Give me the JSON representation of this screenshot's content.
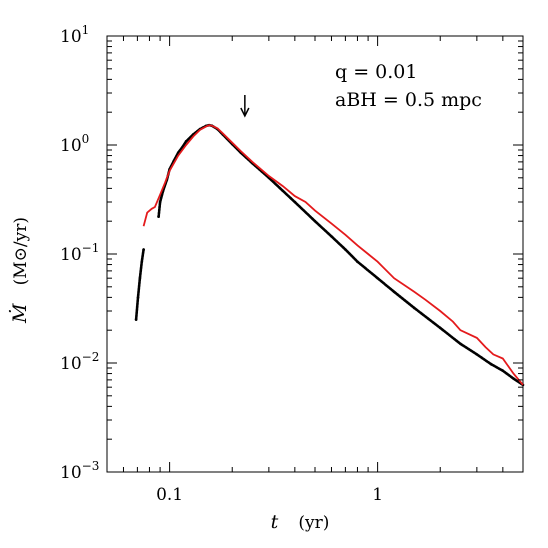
{
  "chart_data": {
    "type": "line",
    "x_scale": "log",
    "y_scale": "log",
    "xlim": [
      0.05,
      5
    ],
    "ylim": [
      0.001,
      10
    ],
    "x_ticks": [
      {
        "value": 0.1,
        "label": "0.1"
      },
      {
        "value": 1,
        "label": "1"
      }
    ],
    "y_ticks": [
      {
        "value": 0.001,
        "mantissa": "10",
        "exp": "−3"
      },
      {
        "value": 0.01,
        "mantissa": "10",
        "exp": "−2"
      },
      {
        "value": 0.1,
        "mantissa": "10",
        "exp": "−1"
      },
      {
        "value": 1,
        "mantissa": "10",
        "exp": "0"
      },
      {
        "value": 10,
        "mantissa": "10",
        "exp": "1"
      }
    ],
    "xlabel": {
      "symbol": "t",
      "unit": "(yr)"
    },
    "ylabel": {
      "symbol": "Ṁ",
      "unit": "(M⊙/yr)"
    },
    "annotations": {
      "line1": "q = 0.01",
      "line2": "aBH = 0.5 mpc",
      "arrow_at_x": 0.23
    },
    "colors": {
      "series_black": "#000000",
      "series_red": "#e41a1c"
    },
    "series": [
      {
        "color": "#000000",
        "style": "dotted-dense",
        "x": [
          0.069,
          0.0705,
          0.072,
          0.0735,
          0.075,
          0.0885,
          0.09,
          0.093,
          0.097,
          0.1,
          0.105,
          0.11,
          0.115,
          0.12,
          0.13,
          0.14,
          0.15,
          0.155,
          0.16,
          0.17,
          0.18,
          0.2,
          0.22,
          0.25,
          0.3,
          0.35,
          0.4,
          0.5,
          0.6,
          0.7,
          0.8,
          1.0,
          1.2,
          1.5,
          2.0,
          2.5,
          3.0,
          3.5,
          4.0,
          4.5,
          5.0
        ],
        "y": [
          0.025,
          0.04,
          0.06,
          0.085,
          0.11,
          0.22,
          0.3,
          0.38,
          0.48,
          0.6,
          0.72,
          0.85,
          0.95,
          1.08,
          1.25,
          1.4,
          1.5,
          1.52,
          1.5,
          1.4,
          1.25,
          1.02,
          0.85,
          0.68,
          0.5,
          0.38,
          0.3,
          0.2,
          0.145,
          0.11,
          0.085,
          0.06,
          0.045,
          0.032,
          0.021,
          0.015,
          0.012,
          0.0098,
          0.0085,
          0.0072,
          0.0063
        ]
      },
      {
        "color": "#e41a1c",
        "style": "solid",
        "x": [
          0.075,
          0.078,
          0.082,
          0.085,
          0.09,
          0.095,
          0.1,
          0.11,
          0.12,
          0.13,
          0.14,
          0.15,
          0.155,
          0.16,
          0.17,
          0.18,
          0.2,
          0.22,
          0.25,
          0.3,
          0.35,
          0.4,
          0.45,
          0.5,
          0.6,
          0.7,
          0.8,
          0.9,
          1.0,
          1.2,
          1.5,
          1.7,
          2.0,
          2.3,
          2.5,
          3.0,
          3.3,
          3.6,
          4.0,
          4.5,
          5.0
        ],
        "y": [
          0.18,
          0.24,
          0.26,
          0.27,
          0.35,
          0.45,
          0.58,
          0.8,
          1.0,
          1.2,
          1.38,
          1.48,
          1.52,
          1.5,
          1.42,
          1.28,
          1.05,
          0.88,
          0.7,
          0.52,
          0.42,
          0.34,
          0.3,
          0.25,
          0.19,
          0.15,
          0.12,
          0.1,
          0.085,
          0.06,
          0.045,
          0.038,
          0.03,
          0.024,
          0.02,
          0.017,
          0.014,
          0.012,
          0.011,
          0.008,
          0.0063
        ]
      }
    ]
  }
}
